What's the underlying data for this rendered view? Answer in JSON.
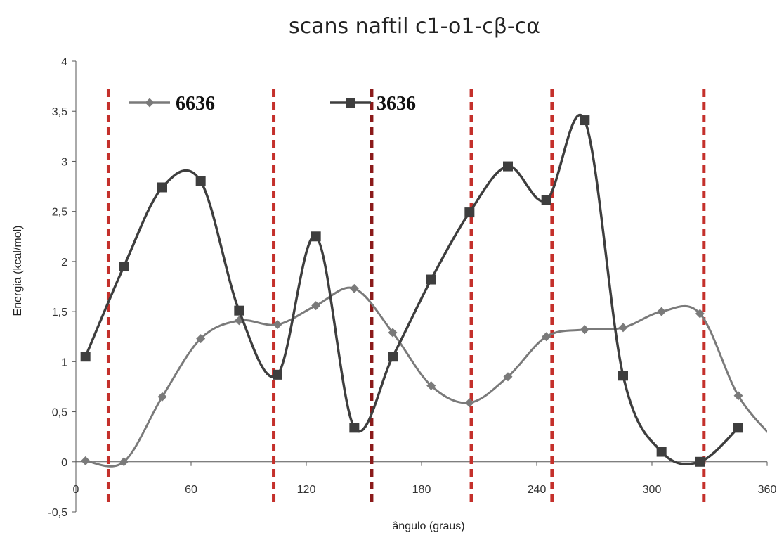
{
  "chart_data": {
    "type": "line",
    "title": "scans naftil c1-o1-cβ-cα",
    "xlabel": "ângulo (graus)",
    "ylabel": "Energia  (kcal/mol)",
    "xlim": [
      0,
      360
    ],
    "ylim": [
      -0.5,
      4
    ],
    "xticks": [
      "0",
      "60",
      "120",
      "180",
      "240",
      "300",
      "360"
    ],
    "yticks": [
      "-0,5",
      "0",
      "0,5",
      "1",
      "1,5",
      "2",
      "2,5",
      "3",
      "3,5",
      "4"
    ],
    "grid": false,
    "legend_position": "top",
    "series": [
      {
        "name": "6636",
        "color": "#7a7a7a",
        "marker": "diamond",
        "x": [
          5,
          25,
          45,
          65,
          85,
          105,
          125,
          145,
          165,
          185,
          205,
          225,
          245,
          265,
          285,
          305,
          325,
          345,
          365
        ],
        "y": [
          0.01,
          0.0,
          0.65,
          1.23,
          1.41,
          1.37,
          1.56,
          1.73,
          1.29,
          0.76,
          0.59,
          0.85,
          1.25,
          1.32,
          1.34,
          1.5,
          1.48,
          0.66,
          0.2
        ]
      },
      {
        "name": "3636",
        "color": "#3e3e3e",
        "marker": "square",
        "x": [
          5,
          25,
          45,
          65,
          85,
          105,
          125,
          145,
          165,
          185,
          205,
          225,
          245,
          265,
          285,
          305,
          325,
          345
        ],
        "y": [
          1.05,
          1.95,
          2.74,
          2.8,
          1.51,
          0.87,
          2.25,
          0.34,
          1.05,
          1.82,
          2.49,
          2.95,
          2.61,
          3.41,
          0.86,
          0.1,
          0.0,
          0.34
        ]
      }
    ],
    "vertical_lines": [
      {
        "x": 17,
        "color": "#c4302b"
      },
      {
        "x": 103,
        "color": "#c4302b"
      },
      {
        "x": 154,
        "color": "#8b1a1a"
      },
      {
        "x": 206,
        "color": "#c4302b"
      },
      {
        "x": 248,
        "color": "#c4302b"
      },
      {
        "x": 327,
        "color": "#c4302b"
      }
    ]
  }
}
